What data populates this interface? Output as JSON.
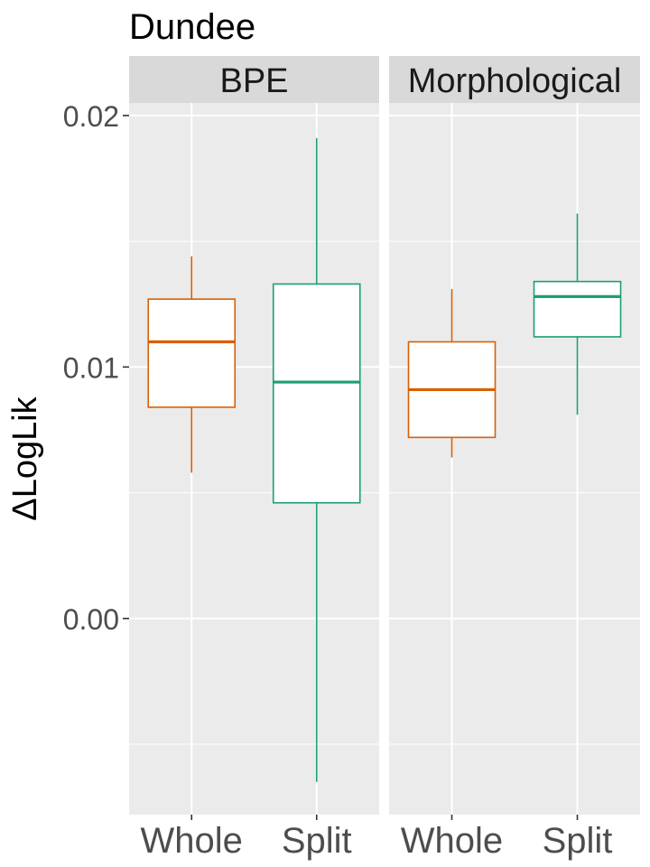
{
  "chart_data": {
    "type": "box",
    "title": "Dundee",
    "ylabel": "ΔLogLik",
    "xlabel": "",
    "ylim": [
      -0.0078,
      0.0205
    ],
    "y_ticks": [
      0.0,
      0.01,
      0.02
    ],
    "y_tick_labels": [
      "0.00",
      "0.01",
      "0.02"
    ],
    "categories": [
      "Whole",
      "Split"
    ],
    "grid": true,
    "colors": {
      "Whole": "#d95f02",
      "Split": "#1b9e77"
    },
    "panels": [
      {
        "name": "BPE",
        "boxes": [
          {
            "category": "Whole",
            "min": 0.0058,
            "q1": 0.0084,
            "median": 0.011,
            "q3": 0.0127,
            "max": 0.0144
          },
          {
            "category": "Split",
            "min": -0.0065,
            "q1": 0.0046,
            "median": 0.0094,
            "q3": 0.0133,
            "max": 0.0191
          }
        ]
      },
      {
        "name": "Morphological",
        "boxes": [
          {
            "category": "Whole",
            "min": 0.0064,
            "q1": 0.0072,
            "median": 0.0091,
            "q3": 0.011,
            "max": 0.0131
          },
          {
            "category": "Split",
            "min": 0.0081,
            "q1": 0.0112,
            "median": 0.0128,
            "q3": 0.0134,
            "max": 0.0161
          }
        ]
      }
    ]
  }
}
